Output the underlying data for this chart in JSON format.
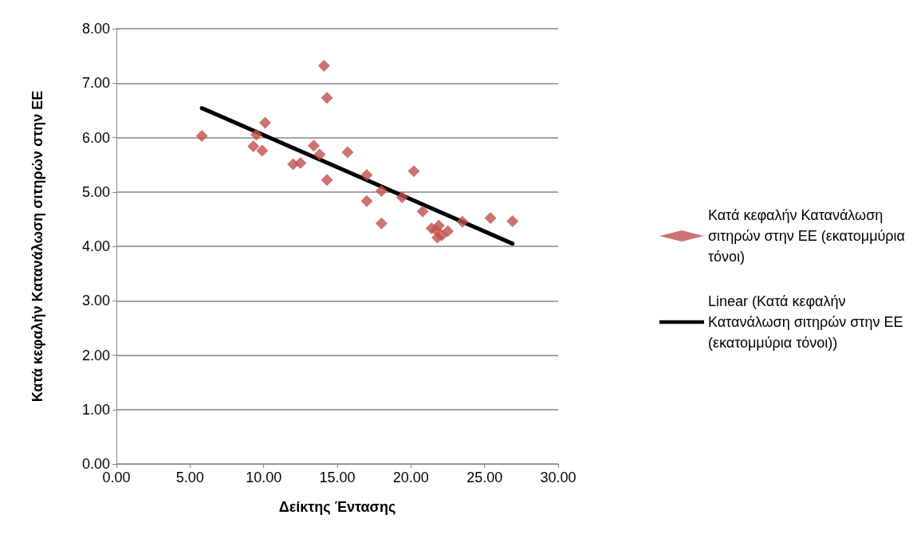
{
  "chart_data": {
    "type": "scatter",
    "xlabel": "Δείκτης Έντασης",
    "ylabel": "Κατά κεφαλήν Κατανάλωση σιτηρών στην ΕΕ",
    "xlim": [
      0,
      30
    ],
    "xticks": [
      {
        "value": 0,
        "label": "0.00"
      },
      {
        "value": 5,
        "label": "5.00"
      },
      {
        "value": 10,
        "label": "10.00"
      },
      {
        "value": 15,
        "label": "15.00"
      },
      {
        "value": 20,
        "label": "20.00"
      },
      {
        "value": 25,
        "label": "25.00"
      },
      {
        "value": 30,
        "label": "30.00"
      }
    ],
    "ylim": [
      0,
      8
    ],
    "yticks": [
      {
        "value": 0,
        "label": "0.00"
      },
      {
        "value": 1,
        "label": "1.00"
      },
      {
        "value": 2,
        "label": "2.00"
      },
      {
        "value": 3,
        "label": "3.00"
      },
      {
        "value": 4,
        "label": "4.00"
      },
      {
        "value": 5,
        "label": "5.00"
      },
      {
        "value": 6,
        "label": "6.00"
      },
      {
        "value": 7,
        "label": "7.00"
      },
      {
        "value": 8,
        "label": "8.00"
      }
    ],
    "grid": "y",
    "legend": "right",
    "series": [
      {
        "name": "Κατά κεφαλήν Κατανάλωση σιτηρών στην ΕΕ (εκατομμύρια τόνοι)",
        "color": "#c0504d",
        "marker": "diamond",
        "x": [
          5.8,
          9.3,
          9.5,
          9.9,
          10.1,
          12.0,
          12.5,
          13.4,
          13.8,
          14.1,
          14.3,
          14.3,
          15.7,
          17.0,
          17.0,
          18.0,
          18.0,
          19.4,
          20.2,
          20.8,
          21.4,
          21.7,
          21.8,
          21.9,
          22.1,
          22.5,
          23.5,
          25.4,
          26.9
        ],
        "values": [
          6.03,
          5.84,
          6.05,
          5.76,
          6.27,
          5.51,
          5.53,
          5.85,
          5.69,
          7.32,
          6.73,
          5.22,
          5.73,
          5.31,
          4.83,
          5.02,
          4.42,
          4.9,
          5.38,
          4.64,
          4.33,
          4.3,
          4.16,
          4.38,
          4.2,
          4.28,
          4.45,
          4.52,
          4.46
        ]
      },
      {
        "name": "Linear (Κατά κεφαλήν Κατανάλωση σιτηρών στην ΕΕ (εκατομμύρια τόνοι))",
        "type": "line",
        "color": "#000000",
        "marker": "none",
        "x": [
          5.8,
          26.9
        ],
        "values": [
          6.54,
          4.05
        ]
      }
    ]
  }
}
